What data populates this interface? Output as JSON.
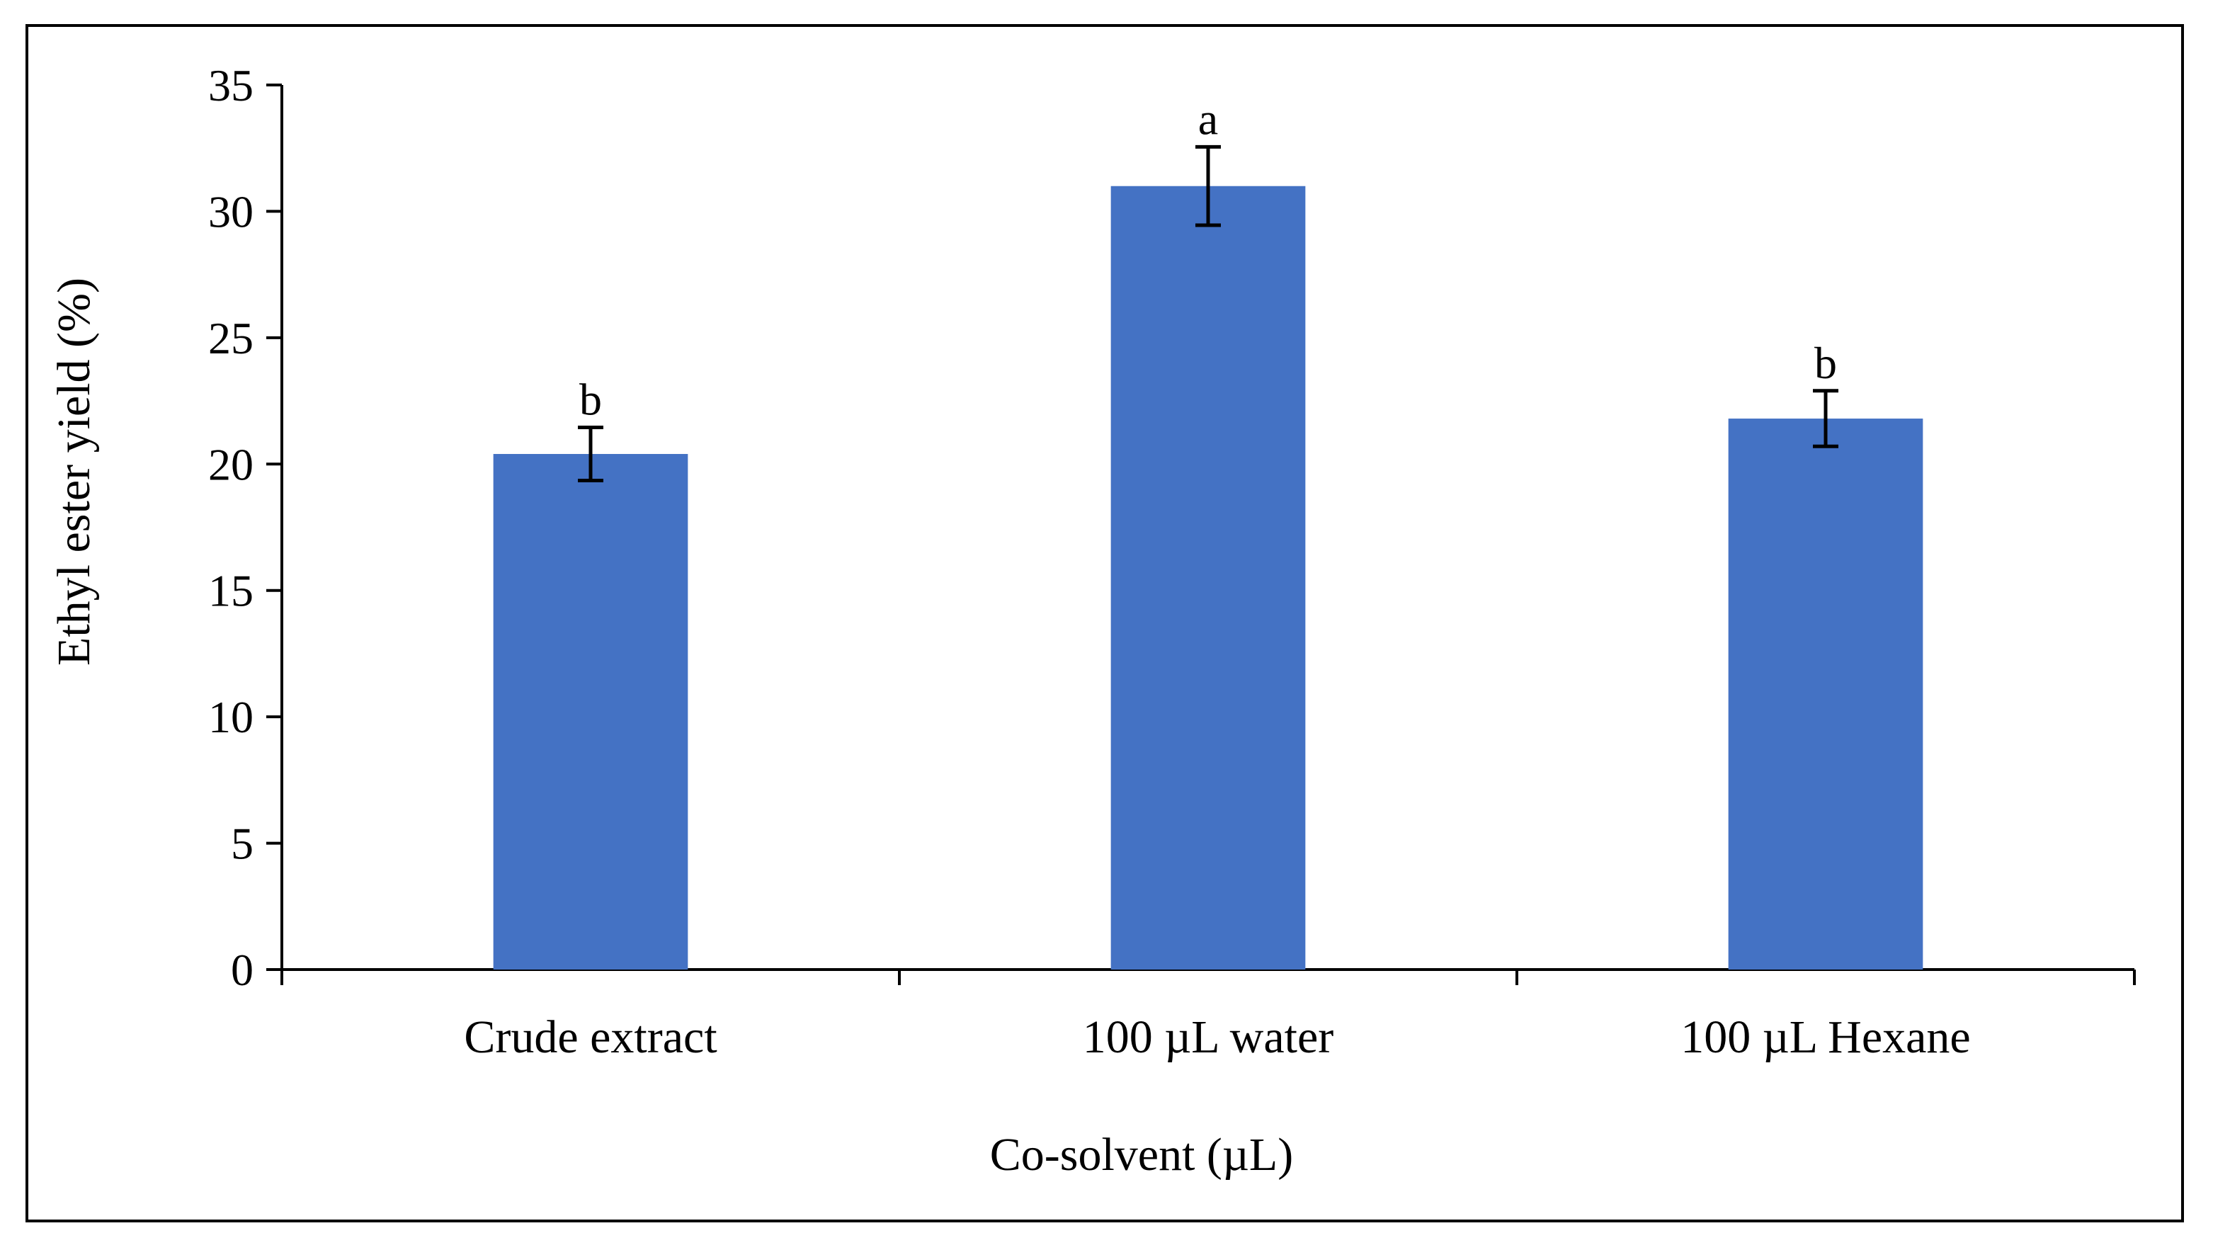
{
  "chart_data": {
    "type": "bar",
    "title": "",
    "xlabel": "Co-solvent (µL)",
    "ylabel": "Ethyl ester yield (%)",
    "ylim": [
      0,
      35
    ],
    "yticks": [
      0,
      5,
      10,
      15,
      20,
      25,
      30,
      35
    ],
    "ytick_labels": [
      "0",
      "5",
      "10",
      "15",
      "20",
      "25",
      "30",
      "35"
    ],
    "grid": false,
    "legend": "none",
    "categories": [
      "Crude extract",
      "100 µL water",
      "100 µL Hexane"
    ],
    "values": [
      20.4,
      31.0,
      21.8
    ],
    "errors": [
      1.05,
      1.55,
      1.1
    ],
    "significance_letters": [
      "b",
      "a",
      "b"
    ],
    "colors": {
      "bar": "#4472C4",
      "axis": "#000000"
    }
  }
}
